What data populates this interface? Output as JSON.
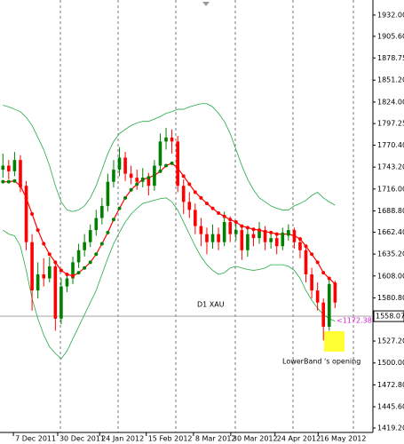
{
  "chart_data": {
    "type": "candlestick",
    "ylim": [
      1413.7,
      1950.7
    ],
    "yticks": [
      {
        "value": 1932,
        "label": "1932.00"
      },
      {
        "value": 1905.6,
        "label": "1905.60"
      },
      {
        "value": 1878.75,
        "label": "1878.75"
      },
      {
        "value": 1851.2,
        "label": "1851.20"
      },
      {
        "value": 1824,
        "label": "1824.00"
      },
      {
        "value": 1797.25,
        "label": "1797.25"
      },
      {
        "value": 1770.4,
        "label": "1770.40"
      },
      {
        "value": 1743.2,
        "label": "1743.20"
      },
      {
        "value": 1716,
        "label": "1716.00"
      },
      {
        "value": 1688.8,
        "label": "1688.80"
      },
      {
        "value": 1662.4,
        "label": "1662.40"
      },
      {
        "value": 1635.2,
        "label": "1635.20"
      },
      {
        "value": 1608,
        "label": "1608.00"
      },
      {
        "value": 1580.8,
        "label": "1580.80"
      },
      {
        "value": 1527.2,
        "label": "1527.20"
      },
      {
        "value": 1500,
        "label": "1500.00"
      },
      {
        "value": 1472.8,
        "label": "1472.80"
      },
      {
        "value": 1445.6,
        "label": "1445.60"
      },
      {
        "value": 1419.2,
        "label": "1419.20"
      }
    ],
    "xlim": [
      -0.5,
      63.5
    ],
    "xticks": [
      {
        "value": 1.8,
        "label": "7 Dec 2011"
      },
      {
        "value": 9.4,
        "label": "30 Dec 2011"
      },
      {
        "value": 16.6,
        "label": "24 Jan 2012"
      },
      {
        "value": 24.6,
        "label": "15 Feb 2012"
      },
      {
        "value": 32.7,
        "label": "8 Mar 2012"
      },
      {
        "value": 39.1,
        "label": "30 Mar 2012"
      },
      {
        "value": 46.7,
        "label": "24 Apr 2012"
      },
      {
        "value": 54.1,
        "label": "16 May 2012"
      }
    ],
    "up_color": "#008000",
    "down_color": "#ff0000",
    "open": [
      1740,
      1745,
      1738,
      1752,
      1720,
      1650,
      1590,
      1610,
      1605,
      1620,
      1555,
      1595,
      1605,
      1625,
      1640,
      1650,
      1665,
      1680,
      1695,
      1725,
      1740,
      1755,
      1735,
      1730,
      1725,
      1730,
      1720,
      1745,
      1775,
      1780,
      1775,
      1720,
      1700,
      1690,
      1670,
      1660,
      1650,
      1660,
      1650,
      1675,
      1660,
      1665,
      1640,
      1660,
      1655,
      1665,
      1650,
      1655,
      1645,
      1660,
      1665,
      1650,
      1640,
      1610,
      1590,
      1575,
      1545,
      1598
    ],
    "high": [
      1760,
      1752,
      1762,
      1758,
      1726,
      1660,
      1625,
      1630,
      1632,
      1625,
      1605,
      1612,
      1632,
      1648,
      1660,
      1672,
      1690,
      1705,
      1735,
      1752,
      1768,
      1762,
      1745,
      1740,
      1742,
      1736,
      1752,
      1785,
      1792,
      1790,
      1782,
      1728,
      1712,
      1698,
      1680,
      1668,
      1672,
      1668,
      1688,
      1682,
      1675,
      1670,
      1668,
      1668,
      1675,
      1670,
      1662,
      1660,
      1668,
      1672,
      1668,
      1656,
      1645,
      1618,
      1600,
      1580,
      1605,
      1602
    ],
    "low": [
      1730,
      1728,
      1732,
      1712,
      1640,
      1565,
      1580,
      1595,
      1600,
      1540,
      1548,
      1588,
      1598,
      1618,
      1632,
      1644,
      1658,
      1672,
      1688,
      1718,
      1732,
      1726,
      1722,
      1715,
      1718,
      1708,
      1714,
      1738,
      1765,
      1760,
      1712,
      1685,
      1680,
      1660,
      1645,
      1635,
      1642,
      1640,
      1645,
      1650,
      1652,
      1628,
      1632,
      1645,
      1648,
      1640,
      1642,
      1635,
      1640,
      1652,
      1642,
      1630,
      1600,
      1580,
      1565,
      1528,
      1540,
      1568
    ],
    "close": [
      1745,
      1738,
      1752,
      1720,
      1650,
      1590,
      1610,
      1605,
      1620,
      1555,
      1595,
      1605,
      1625,
      1640,
      1650,
      1665,
      1680,
      1695,
      1725,
      1740,
      1755,
      1735,
      1730,
      1725,
      1730,
      1720,
      1745,
      1775,
      1780,
      1775,
      1720,
      1700,
      1690,
      1670,
      1660,
      1650,
      1660,
      1650,
      1675,
      1660,
      1665,
      1640,
      1660,
      1655,
      1665,
      1650,
      1655,
      1645,
      1660,
      1665,
      1650,
      1640,
      1610,
      1590,
      1575,
      1545,
      1598,
      1575
    ],
    "bands": {
      "color": "#22aa44",
      "upper": [
        1820,
        1818,
        1815,
        1812,
        1805,
        1795,
        1780,
        1765,
        1745,
        1720,
        1700,
        1690,
        1688,
        1690,
        1695,
        1705,
        1720,
        1740,
        1760,
        1775,
        1785,
        1790,
        1795,
        1798,
        1800,
        1800,
        1803,
        1806,
        1810,
        1812,
        1815,
        1815,
        1818,
        1820,
        1822,
        1822,
        1818,
        1810,
        1800,
        1785,
        1765,
        1745,
        1728,
        1715,
        1705,
        1700,
        1695,
        1692,
        1690,
        1690,
        1695,
        1698,
        1702,
        1708,
        1712,
        1705,
        1700,
        1696
      ],
      "middle": [
        1725,
        1725,
        1726,
        1720,
        1705,
        1685,
        1665,
        1648,
        1635,
        1625,
        1615,
        1610,
        1608,
        1612,
        1618,
        1625,
        1635,
        1648,
        1662,
        1678,
        1692,
        1705,
        1715,
        1722,
        1728,
        1730,
        1733,
        1738,
        1745,
        1748,
        1742,
        1732,
        1722,
        1712,
        1705,
        1698,
        1692,
        1686,
        1682,
        1678,
        1675,
        1670,
        1668,
        1666,
        1665,
        1663,
        1662,
        1660,
        1660,
        1660,
        1658,
        1654,
        1645,
        1635,
        1625,
        1612,
        1605,
        1598
      ],
      "lower": [
        1665,
        1660,
        1658,
        1645,
        1615,
        1580,
        1555,
        1535,
        1520,
        1512,
        1505,
        1515,
        1530,
        1545,
        1560,
        1575,
        1590,
        1610,
        1630,
        1648,
        1662,
        1675,
        1685,
        1692,
        1698,
        1700,
        1702,
        1704,
        1705,
        1700,
        1690,
        1675,
        1660,
        1645,
        1632,
        1622,
        1615,
        1610,
        1612,
        1618,
        1620,
        1618,
        1616,
        1615,
        1616,
        1618,
        1622,
        1622,
        1622,
        1620,
        1615,
        1605,
        1590,
        1578,
        1568,
        1560,
        1555,
        1552
      ]
    },
    "current_price": 1558.07,
    "annotations": [
      "D1 XAU",
      "<1172.38",
      "LowerBand 's opening"
    ]
  }
}
